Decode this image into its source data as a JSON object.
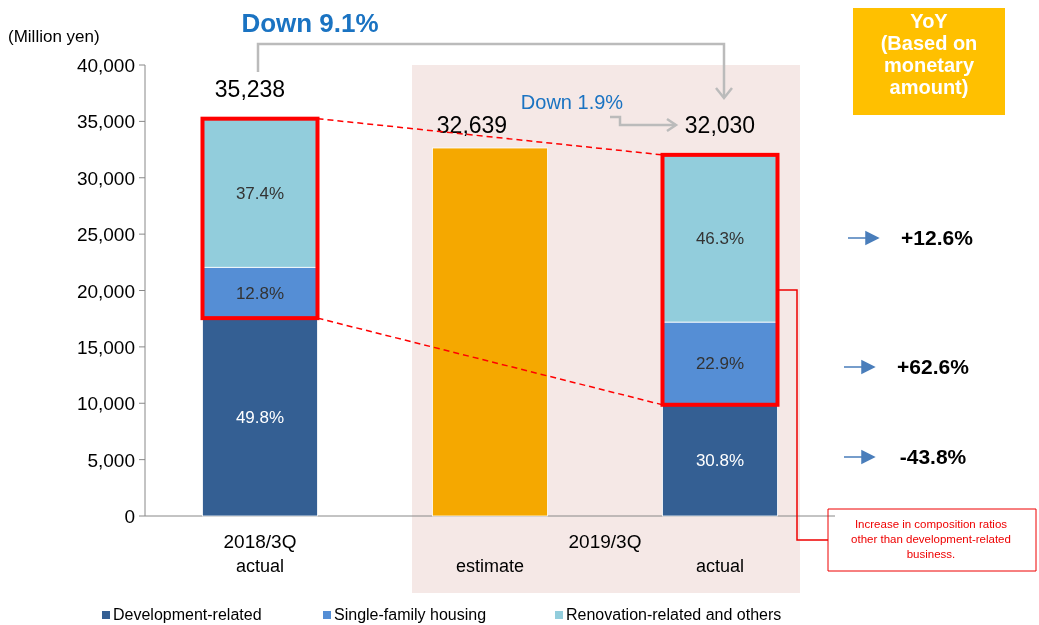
{
  "chart_data": {
    "type": "bar",
    "stacked": true,
    "ylabel": "(Million yen)",
    "categories": [
      "2018/3Q\nactual",
      "estimate",
      "actual"
    ],
    "ylim": [
      0,
      40000
    ],
    "yticks": [
      0,
      {
        "value": 5000,
        "label": "5,000"
      },
      {
        "value": 10000,
        "label": "10,000"
      },
      {
        "value": 15000,
        "label": "15,000"
      },
      {
        "value": 20000,
        "label": "20,000"
      },
      {
        "value": 25000,
        "label": "25,000"
      },
      {
        "value": 30000,
        "label": "30,000"
      },
      {
        "value": 35000,
        "label": "35,000"
      },
      {
        "value": 40000,
        "label": "40,000"
      }
    ],
    "grid": false,
    "legend": "bottom",
    "series": [
      {
        "name": "Development-related",
        "color": "#345f93",
        "values": [
          17549,
          null,
          9865
        ]
      },
      {
        "name": "Single-family housing",
        "color": "#558ed5",
        "values": [
          4510,
          null,
          7335
        ]
      },
      {
        "name": "Renovation-related and others",
        "color": "#92cddc",
        "values": [
          13179,
          null,
          14830
        ]
      },
      {
        "color": "#f5a800",
        "values": [
          null,
          32639,
          null
        ]
      }
    ],
    "totals": [
      "35,238",
      "32,639",
      "32,030"
    ],
    "bands": [
      {
        "axis": "x",
        "from": "estimate",
        "to": "actual",
        "color": "#f5e8e6"
      }
    ],
    "annotations": [
      "2019/3Q",
      "Down 9.1%",
      "Down 1.9%",
      "YoY\n(Based on\nmonetary\namount)",
      "+12.6%",
      "+62.6%",
      "-43.8%",
      "Increase in composition ratios\nother than development-related\nbusiness.",
      "49.8%",
      "30.8%",
      "12.8%",
      "22.9%",
      "37.4%",
      "46.3%"
    ]
  }
}
